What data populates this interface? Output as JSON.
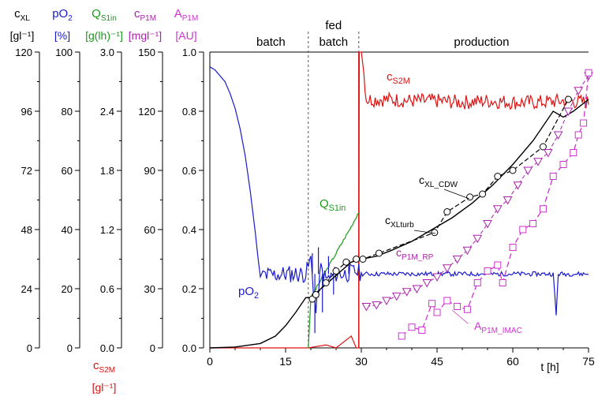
{
  "chart_data": {
    "type": "line",
    "xlabel": "t [h]",
    "xlim": [
      0,
      75
    ],
    "x_ticks": [
      "0",
      "15",
      "30",
      "45",
      "60",
      "75"
    ],
    "phases": [
      {
        "label": "batch",
        "from": 0,
        "to": 19.5
      },
      {
        "label": "fed batch",
        "from": 19.5,
        "to": 29.5
      },
      {
        "label": "production",
        "from": 29.5,
        "to": 75
      }
    ],
    "left_axes": [
      {
        "key": "cxl",
        "label_main": "c",
        "label_sub": "XL",
        "unit": "[gl⁻¹]",
        "color": "#000000",
        "ylim": [
          0,
          120
        ],
        "ticks": [
          "0",
          "24",
          "48",
          "72",
          "96",
          "120"
        ]
      },
      {
        "key": "po2",
        "label_main": "pO",
        "label_sub": "2",
        "unit": "[%]",
        "color": "#1a1acc",
        "ylim": [
          0,
          100
        ],
        "ticks": [
          "0",
          "20",
          "40",
          "60",
          "80",
          "100"
        ]
      },
      {
        "key": "qs",
        "label_main": "Q",
        "label_sub": "S1in",
        "unit": "[g(lh)⁻¹]",
        "color": "#1a9a1a",
        "ylim": [
          0,
          3
        ],
        "ticks": [
          "0.0",
          "0.6",
          "1.2",
          "1.8",
          "2.4",
          "3.0"
        ],
        "bottom_label_main": "c",
        "bottom_label_sub": "S2M",
        "bottom_unit": "[gl⁻¹]",
        "bottom_color": "#dd1111"
      },
      {
        "key": "cp1m",
        "label_main": "c",
        "label_sub": "P1M",
        "unit": "[mgl⁻¹]",
        "color": "#aa22aa",
        "ylim": [
          0,
          150
        ],
        "ticks": [
          "0",
          "30",
          "60",
          "90",
          "120",
          "150"
        ]
      },
      {
        "key": "ap1m",
        "label_main": "A",
        "label_sub": "P1M",
        "unit": "[AU]",
        "color": "#cc33cc",
        "ylim": [
          0,
          1
        ],
        "ticks": [
          "0.0",
          "0.2",
          "0.4",
          "0.6",
          "0.8",
          "1.0"
        ]
      }
    ],
    "series": [
      {
        "key": "pO2",
        "label_main": "pO",
        "label_sub": "2",
        "color": "#1a1acc",
        "axis": "ap1m",
        "x": [
          0,
          1,
          2,
          3,
          4,
          5,
          6,
          7,
          8,
          9,
          9.5,
          10,
          10.5,
          11,
          15,
          19,
          20,
          21,
          22,
          23,
          25,
          27,
          29,
          30,
          35,
          40,
          45,
          50,
          55,
          60,
          65,
          67,
          68,
          68.6,
          69,
          70,
          75
        ],
        "y": [
          0.95,
          0.94,
          0.92,
          0.9,
          0.86,
          0.81,
          0.74,
          0.65,
          0.53,
          0.39,
          0.31,
          0.24,
          0.26,
          0.245,
          0.25,
          0.25,
          0.3,
          0.12,
          0.27,
          0.23,
          0.25,
          0.25,
          0.26,
          0.25,
          0.25,
          0.25,
          0.25,
          0.25,
          0.25,
          0.25,
          0.25,
          0.25,
          0.25,
          0.11,
          0.25,
          0.25,
          0.25
        ]
      },
      {
        "key": "cXLturb",
        "label_main": "c",
        "label_sub": "XLturb",
        "color": "#000000",
        "axis": "ap1m",
        "x": [
          0,
          5,
          10,
          13,
          15,
          17,
          19,
          20,
          22,
          24,
          26,
          28,
          30,
          33,
          36,
          40,
          44,
          48,
          52,
          56,
          60,
          64,
          68,
          70,
          72,
          75
        ],
        "y": [
          0.0,
          0.003,
          0.015,
          0.04,
          0.075,
          0.12,
          0.17,
          0.17,
          0.2,
          0.23,
          0.26,
          0.29,
          0.3,
          0.31,
          0.33,
          0.36,
          0.4,
          0.44,
          0.49,
          0.55,
          0.62,
          0.7,
          0.8,
          0.78,
          0.8,
          0.84
        ]
      },
      {
        "key": "cXL_CDW",
        "label_main": "c",
        "label_sub": "XL_CDW",
        "color": "#000000",
        "axis": "ap1m",
        "x": [
          20.3,
          21,
          23,
          25,
          27,
          29,
          30.3,
          33.5,
          44.5,
          47,
          51.5,
          54,
          57,
          60,
          66,
          71
        ],
        "y": [
          0.165,
          0.18,
          0.22,
          0.26,
          0.29,
          0.3,
          0.3,
          0.32,
          0.39,
          0.46,
          0.51,
          0.52,
          0.58,
          0.6,
          0.68,
          0.84
        ]
      },
      {
        "key": "cP1M_RP",
        "label_main": "c",
        "label_sub": "P1M_RP",
        "color": "#aa22aa",
        "axis": "ap1m",
        "x": [
          31,
          33,
          35,
          37,
          39,
          41,
          43,
          45,
          47,
          49,
          51,
          53,
          55,
          57,
          59,
          61,
          63,
          65,
          67,
          69,
          71,
          73,
          75
        ],
        "y": [
          0.14,
          0.145,
          0.16,
          0.175,
          0.19,
          0.2,
          0.22,
          0.24,
          0.27,
          0.3,
          0.33,
          0.37,
          0.42,
          0.47,
          0.5,
          0.55,
          0.6,
          0.63,
          0.66,
          0.72,
          0.8,
          0.87,
          0.92
        ]
      },
      {
        "key": "AP1M_IMAC",
        "label_main": "A",
        "label_sub": "P1M_IMAC",
        "color": "#cc33cc",
        "axis": "ap1m",
        "x": [
          38,
          40,
          42,
          44,
          45,
          47,
          49,
          51,
          53,
          55,
          57,
          58,
          60,
          62,
          64,
          66,
          68,
          70,
          72,
          73,
          74,
          75
        ],
        "y": [
          0.04,
          0.07,
          0.06,
          0.15,
          0.12,
          0.16,
          0.14,
          0.13,
          0.22,
          0.26,
          0.28,
          0.22,
          0.34,
          0.4,
          0.42,
          0.47,
          0.58,
          0.62,
          0.66,
          0.72,
          0.76,
          0.93
        ]
      },
      {
        "key": "QS1in",
        "label_main": "Q",
        "label_sub": "S1in",
        "color": "#1a9a1a",
        "axis": "ap1m",
        "x": [
          19.5,
          20,
          22,
          24,
          26,
          28,
          29.5
        ],
        "y": [
          0.0,
          0.17,
          0.23,
          0.29,
          0.35,
          0.41,
          0.46
        ]
      },
      {
        "key": "cS2M",
        "label_main": "c",
        "label_sub": "S2M",
        "color": "#dd1111",
        "axis": "ap1m",
        "x": [
          0,
          19.5,
          23,
          25,
          28,
          29,
          29.5,
          29.6,
          30,
          30.5,
          31,
          35,
          40,
          45,
          50,
          55,
          60,
          65,
          70,
          75
        ],
        "y": [
          0,
          0,
          0.01,
          0.0,
          0.04,
          0.0,
          0.0,
          1.0,
          1.0,
          0.93,
          0.84,
          0.84,
          0.835,
          0.835,
          0.83,
          0.835,
          0.83,
          0.83,
          0.835,
          0.83
        ]
      }
    ]
  }
}
